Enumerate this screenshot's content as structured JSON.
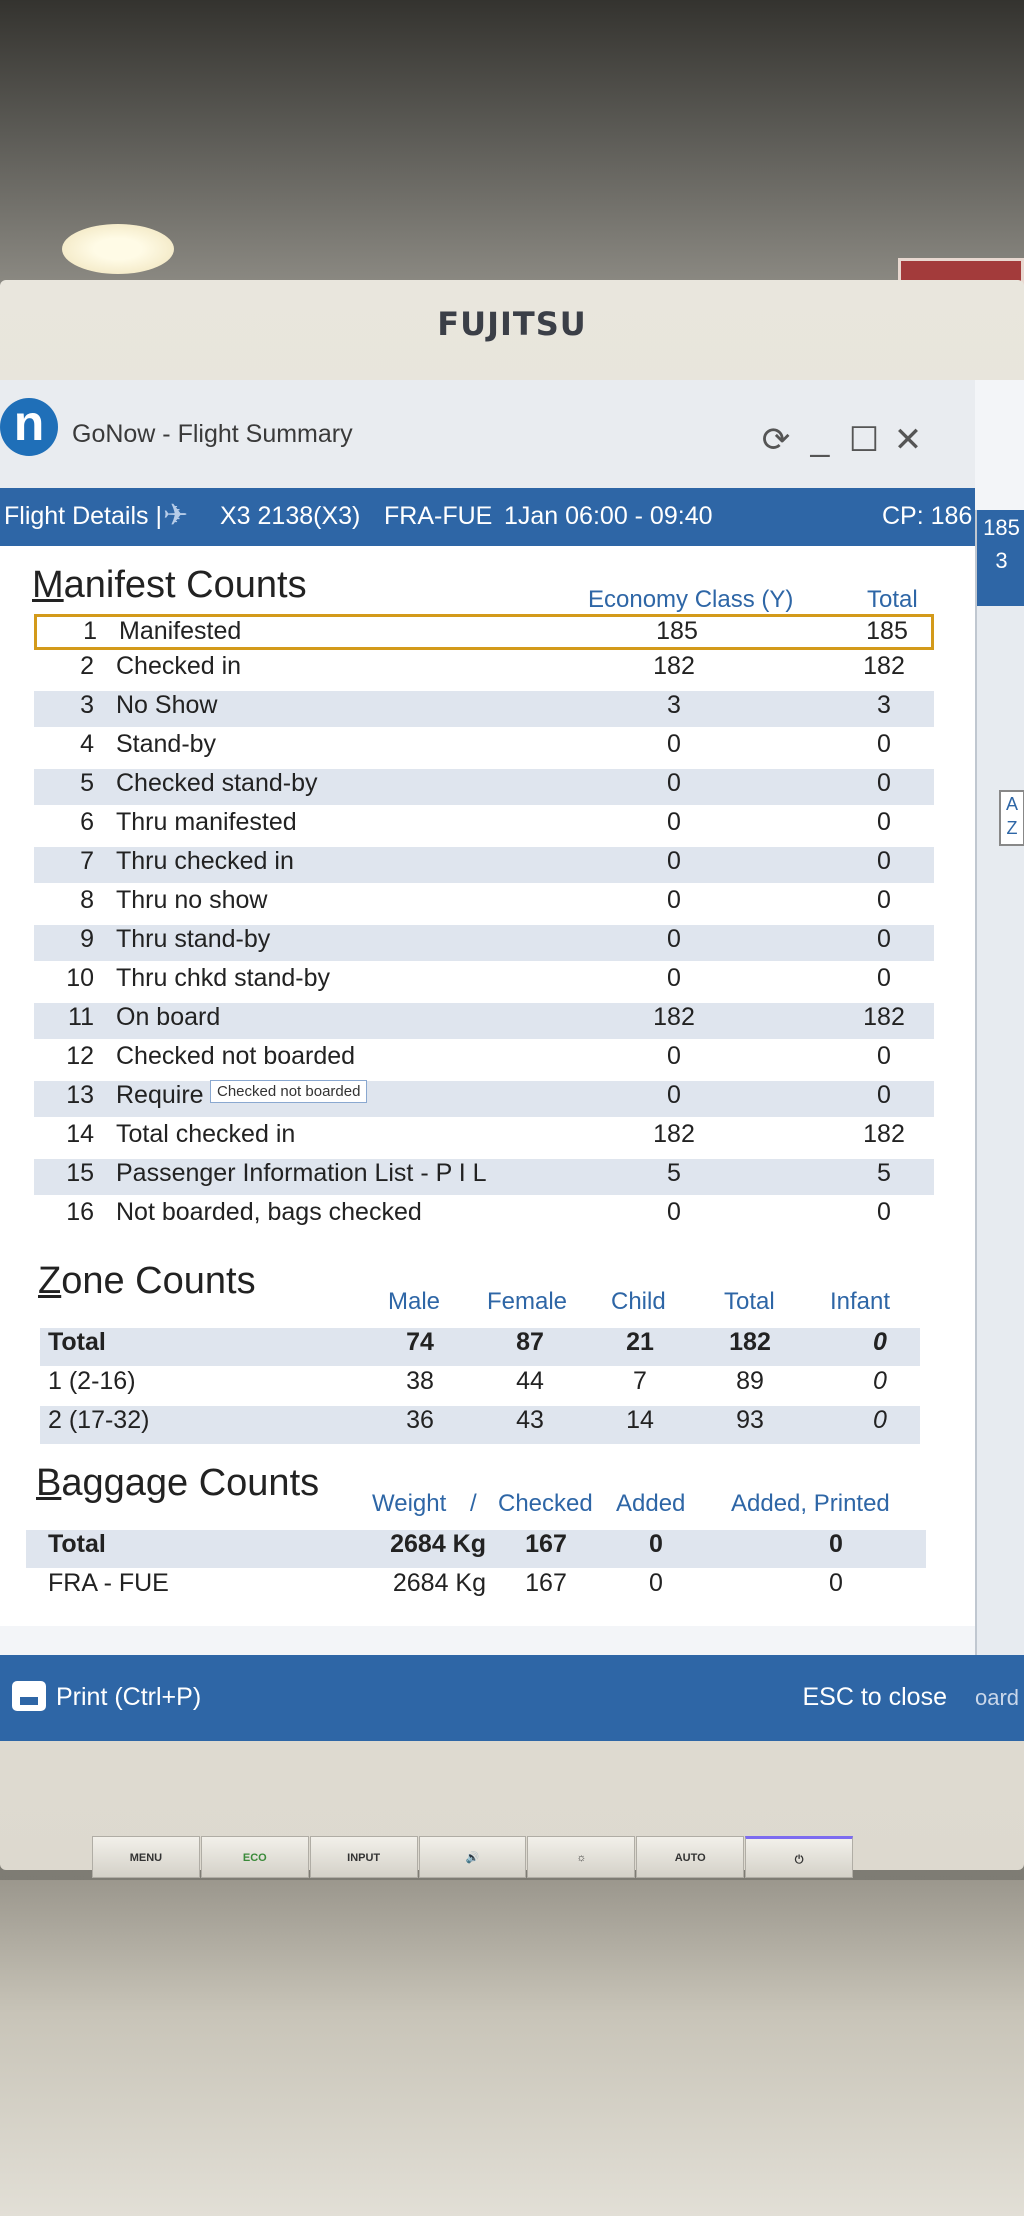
{
  "monitor": {
    "brand": "FUJITSU"
  },
  "window": {
    "logo_letter": "n",
    "title": "GoNow - Flight Summary",
    "controls": {
      "refresh": "⟳",
      "minimize": "_",
      "maximize": "☐",
      "close": "✕"
    }
  },
  "flight": {
    "label": "Flight Details |",
    "carrier_icon": "✈",
    "flight_no": "X3 2138(X3)",
    "route": "FRA-FUE",
    "time": "1Jan 06:00 - 09:40",
    "cp": "CP: 186"
  },
  "side_panel": {
    "value_top": "185",
    "value_second": "3",
    "az_button": "A Z"
  },
  "manifest": {
    "title_first": "M",
    "title_rest": "anifest Counts",
    "col_economy": "Economy Class (Y)",
    "col_total": "Total",
    "rows": [
      {
        "n": "1",
        "label": "Manifested",
        "econ": "185",
        "total": "185"
      },
      {
        "n": "2",
        "label": "Checked in",
        "econ": "182",
        "total": "182"
      },
      {
        "n": "3",
        "label": "No Show",
        "econ": "3",
        "total": "3"
      },
      {
        "n": "4",
        "label": "Stand-by",
        "econ": "0",
        "total": "0"
      },
      {
        "n": "5",
        "label": "Checked stand-by",
        "econ": "0",
        "total": "0"
      },
      {
        "n": "6",
        "label": "Thru manifested",
        "econ": "0",
        "total": "0"
      },
      {
        "n": "7",
        "label": "Thru checked in",
        "econ": "0",
        "total": "0"
      },
      {
        "n": "8",
        "label": "Thru no show",
        "econ": "0",
        "total": "0"
      },
      {
        "n": "9",
        "label": "Thru stand-by",
        "econ": "0",
        "total": "0"
      },
      {
        "n": "10",
        "label": "Thru chkd stand-by",
        "econ": "0",
        "total": "0"
      },
      {
        "n": "11",
        "label": "On board",
        "econ": "182",
        "total": "182"
      },
      {
        "n": "12",
        "label": "Checked not boarded",
        "econ": "0",
        "total": "0"
      },
      {
        "n": "13",
        "label": "Require on",
        "econ": "0",
        "total": "0"
      },
      {
        "n": "14",
        "label": "Total checked in",
        "econ": "182",
        "total": "182"
      },
      {
        "n": "15",
        "label": "Passenger Information List - P I L",
        "econ": "5",
        "total": "5"
      },
      {
        "n": "16",
        "label": "Not boarded, bags checked",
        "econ": "0",
        "total": "0"
      }
    ],
    "tooltip": "Checked not boarded"
  },
  "zone": {
    "title_first": "Z",
    "title_rest": "one Counts",
    "headers": [
      "Male",
      "Female",
      "Child",
      "Total",
      "Infant"
    ],
    "rows": [
      {
        "zone": "Total",
        "male": "74",
        "female": "87",
        "child": "21",
        "total": "182",
        "infant": "0"
      },
      {
        "zone": "1 (2-16)",
        "male": "38",
        "female": "44",
        "child": "7",
        "total": "89",
        "infant": "0"
      },
      {
        "zone": "2 (17-32)",
        "male": "36",
        "female": "43",
        "child": "14",
        "total": "93",
        "infant": "0"
      }
    ]
  },
  "baggage": {
    "title_first": "B",
    "title_rest": "aggage Counts",
    "headers": [
      "Weight",
      "/",
      "Checked",
      "Added",
      "Added, Printed"
    ],
    "rows": [
      {
        "route": "Total",
        "weight": "2684 Kg",
        "checked": "167",
        "added": "0",
        "added_printed": "0"
      },
      {
        "route": "FRA - FUE",
        "weight": "2684 Kg",
        "checked": "167",
        "added": "0",
        "added_printed": "0"
      }
    ]
  },
  "footer": {
    "print": "Print (Ctrl+P)",
    "esc": "ESC to close",
    "edge_text": "oard"
  },
  "hw_buttons": [
    "MENU",
    "ECO",
    "INPUT",
    "🔊",
    "☼",
    "AUTO",
    "⏻"
  ]
}
